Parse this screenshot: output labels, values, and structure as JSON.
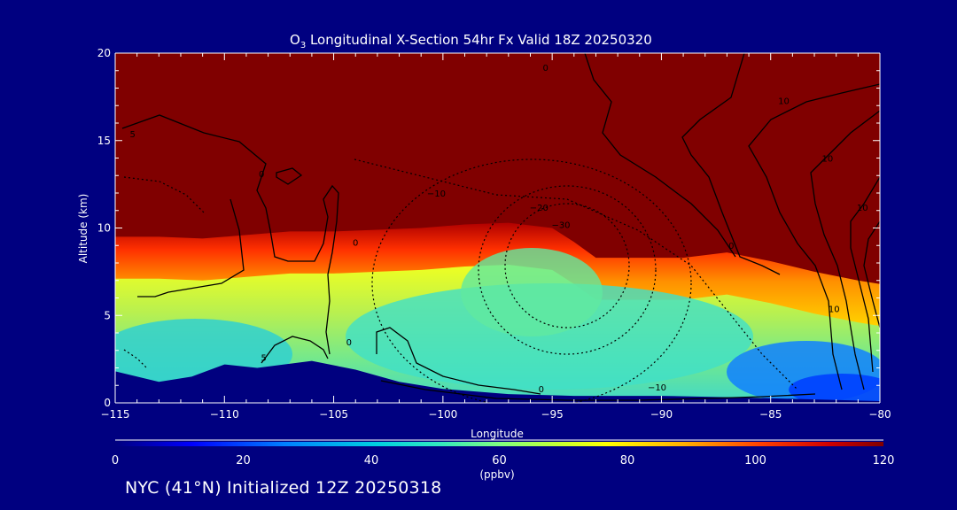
{
  "chart_data": {
    "type": "heatmap",
    "title_prefix": "O",
    "title_subscript": "3",
    "title_rest": " Longitudinal X-Section 54hr  Fx Valid 18Z 20250320",
    "xlabel": "Longitude",
    "ylabel": "Altitude (km)",
    "xlim": [
      -115,
      -80
    ],
    "ylim": [
      0,
      20
    ],
    "xticks": [
      -115,
      -110,
      -105,
      -100,
      -95,
      -90,
      -85,
      -80
    ],
    "xtick_labels": [
      "−115",
      "−110",
      "−105",
      "−100",
      "−95",
      "−90",
      "−85",
      "−80"
    ],
    "yticks": [
      0,
      5,
      10,
      15,
      20
    ],
    "ytick_labels": [
      "0",
      "5",
      "10",
      "15",
      "20"
    ],
    "colorbar": {
      "range": [
        0,
        120
      ],
      "ticks": [
        0,
        20,
        40,
        60,
        80,
        100,
        120
      ],
      "tick_labels": [
        "0",
        "20",
        "40",
        "60",
        "80",
        "100",
        "120"
      ],
      "unit_label": "(ppbv)"
    },
    "tropopause_height_km": [
      [
        -115,
        9.5
      ],
      [
        -113,
        9.5
      ],
      [
        -111,
        9.4
      ],
      [
        -109,
        9.6
      ],
      [
        -107,
        9.8
      ],
      [
        -105,
        9.8
      ],
      [
        -103,
        9.9
      ],
      [
        -101,
        10.0
      ],
      [
        -99,
        10.2
      ],
      [
        -97,
        10.3
      ],
      [
        -95,
        10.0
      ],
      [
        -94,
        9.2
      ],
      [
        -93,
        8.3
      ],
      [
        -91,
        8.3
      ],
      [
        -89,
        8.3
      ],
      [
        -87,
        8.6
      ],
      [
        -85,
        8.1
      ],
      [
        -83,
        7.5
      ],
      [
        -81,
        7.0
      ],
      [
        -80,
        6.8
      ]
    ],
    "terrain_height_km": [
      [
        -115,
        1.8
      ],
      [
        -113,
        1.2
      ],
      [
        -111.5,
        1.5
      ],
      [
        -110,
        2.2
      ],
      [
        -108.5,
        2.0
      ],
      [
        -106,
        2.4
      ],
      [
        -104,
        1.9
      ],
      [
        -102,
        1.2
      ],
      [
        -100,
        0.8
      ],
      [
        -97,
        0.5
      ],
      [
        -94,
        0.4
      ],
      [
        -90,
        0.4
      ],
      [
        -86,
        0.3
      ],
      [
        -83,
        0.2
      ],
      [
        -80,
        0.1
      ]
    ],
    "contour_labels": [
      {
        "text": "5",
        "x": -114.2,
        "y": 15.2,
        "dashed": false
      },
      {
        "text": "0",
        "x": -108.3,
        "y": 12.9,
        "dashed": false
      },
      {
        "text": "0",
        "x": -104.0,
        "y": 9.0,
        "dashed": false
      },
      {
        "text": "0",
        "x": -104.3,
        "y": 3.3,
        "dashed": false
      },
      {
        "text": "5",
        "x": -108.2,
        "y": 2.4,
        "dashed": false
      },
      {
        "text": "−10",
        "x": -100.3,
        "y": 11.8,
        "dashed": true
      },
      {
        "text": "−20",
        "x": -95.6,
        "y": 11.0,
        "dashed": true
      },
      {
        "text": "−30",
        "x": -94.6,
        "y": 10.0,
        "dashed": true
      },
      {
        "text": "0",
        "x": -95.5,
        "y": 0.6,
        "dashed": true
      },
      {
        "text": "−10",
        "x": -90.2,
        "y": 0.7,
        "dashed": true
      },
      {
        "text": "0",
        "x": -95.3,
        "y": 19.0,
        "dashed": false
      },
      {
        "text": "0",
        "x": -86.8,
        "y": 8.8,
        "dashed": false
      },
      {
        "text": "10",
        "x": -84.4,
        "y": 17.1,
        "dashed": false
      },
      {
        "text": "10",
        "x": -82.4,
        "y": 13.8,
        "dashed": false
      },
      {
        "text": "10",
        "x": -80.8,
        "y": 11.0,
        "dashed": false
      },
      {
        "text": "10",
        "x": -82.1,
        "y": 5.2,
        "dashed": false
      }
    ]
  },
  "footer": {
    "text": "NYC (41°N) Initialized 12Z 20250318"
  }
}
